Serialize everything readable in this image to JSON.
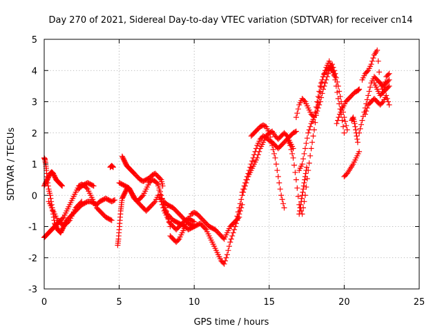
{
  "chart_data": {
    "type": "scatter",
    "title": "Day 270 of 2021, Sidereal Day-to-day VTEC variation (SDTVAR) for receiver cn14",
    "xlabel": "GPS time / hours",
    "ylabel": "SDTVAR / TECUs",
    "xlim": [
      0,
      25
    ],
    "ylim": [
      -3,
      5
    ],
    "xticks": [
      "0",
      "5",
      "10",
      "15",
      "20",
      "25"
    ],
    "yticks": [
      "-3",
      "-2",
      "-1",
      "0",
      "1",
      "2",
      "3",
      "4",
      "5"
    ],
    "grid": true,
    "marker": "plus",
    "color": "#ff0000",
    "series": [
      {
        "x": [
          0.0,
          0.05,
          0.1,
          0.15,
          0.2,
          0.3,
          0.4,
          0.5,
          0.6,
          0.7,
          0.8,
          0.9,
          1.0,
          1.1,
          1.2,
          1.3,
          1.4,
          1.5,
          1.7,
          1.9,
          2.1,
          2.3,
          2.5,
          2.7,
          2.9,
          3.1,
          3.3,
          3.5,
          3.7,
          3.9,
          4.1,
          4.3,
          4.5,
          4.7
        ],
        "y": [
          1.2,
          1.15,
          1.0,
          0.8,
          0.5,
          0.2,
          0.0,
          -0.3,
          -0.6,
          -0.9,
          -1.0,
          -1.1,
          -1.15,
          -1.2,
          -1.1,
          -1.0,
          -0.9,
          -0.8,
          -0.7,
          -0.6,
          -0.5,
          -0.4,
          -0.3,
          -0.25,
          -0.2,
          -0.2,
          -0.25,
          -0.3,
          -0.2,
          -0.15,
          -0.1,
          -0.15,
          -0.2,
          -0.15
        ]
      },
      {
        "x": [
          0.0,
          0.1,
          0.2,
          0.3,
          0.4,
          0.5,
          0.6,
          0.7,
          0.8,
          0.9,
          1.0,
          1.1,
          1.3,
          1.5,
          1.7,
          1.9,
          2.1,
          2.3,
          2.5,
          2.7,
          2.9,
          3.1,
          3.3,
          3.5,
          3.7,
          3.9,
          4.1,
          4.3,
          4.5
        ],
        "y": [
          -1.35,
          -1.3,
          -1.25,
          -1.2,
          -1.15,
          -1.1,
          -1.05,
          -1.0,
          -0.95,
          -0.9,
          -0.85,
          -0.8,
          -0.7,
          -0.5,
          -0.3,
          -0.1,
          0.1,
          0.3,
          0.35,
          0.3,
          0.2,
          0.0,
          -0.2,
          -0.4,
          -0.5,
          -0.6,
          -0.7,
          -0.75,
          -0.8
        ]
      },
      {
        "x": [
          0.0,
          0.1,
          0.2,
          0.3,
          0.4,
          0.5,
          0.6,
          0.7,
          0.8,
          0.9,
          1.0,
          1.1,
          1.2
        ],
        "y": [
          0.3,
          0.4,
          0.5,
          0.6,
          0.7,
          0.75,
          0.7,
          0.6,
          0.5,
          0.45,
          0.4,
          0.35,
          0.3
        ]
      },
      {
        "x": [
          0.3,
          0.5,
          0.7,
          0.9,
          1.1,
          1.3,
          1.5,
          1.7,
          1.9,
          2.1,
          2.3,
          2.5
        ],
        "y": [
          -0.2,
          -0.4,
          -0.6,
          -0.8,
          -0.9,
          -0.95,
          -0.9,
          -0.8,
          -0.6,
          -0.4,
          -0.3,
          -0.2
        ]
      },
      {
        "x": [
          2.3,
          2.5,
          2.7,
          2.9,
          3.1,
          3.3
        ],
        "y": [
          0.2,
          0.3,
          0.35,
          0.4,
          0.35,
          0.3
        ]
      },
      {
        "x": [
          4.4,
          4.5,
          4.6
        ],
        "y": [
          0.9,
          0.95,
          0.9
        ]
      },
      {
        "x": [
          4.9,
          4.95,
          5.0,
          5.05,
          5.1,
          5.15,
          5.2,
          5.3,
          5.4,
          5.5,
          5.6,
          5.7,
          5.8,
          5.9,
          6.0,
          6.2,
          6.4,
          6.6,
          6.8,
          7.0,
          7.2,
          7.4,
          7.6,
          7.8,
          8.0,
          8.2,
          8.4,
          8.6,
          8.8,
          9.0,
          9.2,
          9.4,
          9.6,
          9.8,
          10.0
        ],
        "y": [
          -1.6,
          -1.4,
          -1.1,
          -0.8,
          -0.5,
          -0.3,
          -0.1,
          0.0,
          0.1,
          0.2,
          0.25,
          0.2,
          0.1,
          0.0,
          -0.1,
          -0.2,
          -0.3,
          -0.4,
          -0.5,
          -0.4,
          -0.3,
          -0.2,
          0.0,
          -0.2,
          -0.5,
          -0.7,
          -0.9,
          -1.0,
          -1.1,
          -1.0,
          -0.9,
          -0.8,
          -0.75,
          -0.8,
          -0.85
        ]
      },
      {
        "x": [
          5.2,
          5.3,
          5.4,
          5.5,
          5.6,
          5.7,
          5.8,
          5.9,
          6.0,
          6.2,
          6.4,
          6.6,
          6.8,
          7.0,
          7.2,
          7.4,
          7.6,
          7.8,
          7.9
        ],
        "y": [
          1.25,
          1.15,
          1.05,
          0.95,
          0.9,
          0.85,
          0.8,
          0.75,
          0.7,
          0.6,
          0.5,
          0.45,
          0.5,
          0.55,
          0.65,
          0.7,
          0.6,
          0.5,
          0.3
        ]
      },
      {
        "x": [
          5.0,
          5.2,
          5.4,
          5.6,
          5.8,
          6.0,
          6.2,
          6.4,
          6.6,
          6.8,
          7.0,
          7.2,
          7.4,
          7.6,
          7.8,
          8.0,
          8.2,
          8.4
        ],
        "y": [
          0.4,
          0.35,
          0.3,
          0.25,
          0.1,
          -0.05,
          -0.2,
          -0.1,
          0.0,
          0.2,
          0.4,
          0.5,
          0.45,
          0.35,
          0.0,
          -0.3,
          -0.6,
          -1.0
        ]
      },
      {
        "x": [
          7.6,
          7.8,
          8.0,
          8.2,
          8.4,
          8.6,
          8.8,
          9.0,
          9.2,
          9.4,
          9.6,
          9.8,
          10.0,
          10.2,
          10.4,
          10.6,
          10.8,
          11.0,
          11.2,
          11.4,
          11.6,
          11.8,
          12.0,
          12.2,
          12.4,
          12.6,
          12.8,
          13.0,
          13.2
        ],
        "y": [
          0.3,
          -0.1,
          -0.4,
          -0.6,
          -0.7,
          -0.8,
          -0.85,
          -0.9,
          -0.95,
          -1.0,
          -1.1,
          -1.05,
          -1.0,
          -0.95,
          -0.9,
          -1.0,
          -1.1,
          -1.3,
          -1.5,
          -1.7,
          -1.9,
          -2.1,
          -2.2,
          -1.9,
          -1.5,
          -1.2,
          -0.9,
          -0.6,
          -0.3
        ]
      },
      {
        "x": [
          8.4,
          8.6,
          8.8,
          9.0,
          9.2,
          9.4,
          9.6,
          9.8,
          10.0,
          10.2,
          10.4,
          10.6,
          10.8,
          11.0,
          11.2,
          11.4,
          11.6,
          11.8,
          12.0,
          12.2,
          12.4,
          12.6,
          12.8,
          13.0
        ],
        "y": [
          -1.3,
          -1.4,
          -1.5,
          -1.4,
          -1.2,
          -1.0,
          -0.8,
          -0.6,
          -0.55,
          -0.6,
          -0.7,
          -0.8,
          -0.9,
          -1.0,
          -1.05,
          -1.1,
          -1.2,
          -1.3,
          -1.4,
          -1.2,
          -1.0,
          -0.9,
          -0.8,
          -0.7
        ]
      },
      {
        "x": [
          8.0,
          8.2,
          8.4,
          8.6,
          8.8,
          9.0,
          9.2,
          9.4,
          9.6,
          9.8,
          10.0
        ],
        "y": [
          -0.2,
          -0.3,
          -0.35,
          -0.4,
          -0.5,
          -0.6,
          -0.7,
          -0.8,
          -0.9,
          -0.95,
          -1.0
        ]
      },
      {
        "x": [
          12.8,
          13.0,
          13.2,
          13.4,
          13.6,
          13.8,
          14.0,
          14.2,
          14.4,
          14.6,
          14.8,
          15.0,
          15.2,
          15.4,
          15.6,
          15.8,
          16.0,
          16.2,
          16.4,
          16.6
        ],
        "y": [
          -0.8,
          -0.4,
          0.0,
          0.3,
          0.6,
          0.8,
          1.0,
          1.2,
          1.5,
          1.7,
          1.9,
          2.0,
          2.05,
          1.9,
          1.8,
          1.9,
          2.0,
          1.9,
          1.7,
          1.5
        ]
      },
      {
        "x": [
          13.2,
          13.4,
          13.6,
          13.8,
          14.0,
          14.2,
          14.4,
          14.6,
          14.8,
          15.0,
          15.2,
          15.4,
          15.6,
          15.8,
          16.0,
          16.2,
          16.4,
          16.6,
          16.8
        ],
        "y": [
          0.1,
          0.4,
          0.7,
          1.0,
          1.3,
          1.6,
          1.8,
          1.9,
          1.85,
          1.75,
          1.7,
          1.6,
          1.5,
          1.6,
          1.7,
          1.8,
          1.9,
          2.0,
          2.05
        ]
      },
      {
        "x": [
          13.8,
          14.0,
          14.2,
          14.4,
          14.6,
          14.8,
          15.0,
          15.2,
          15.4,
          15.6,
          15.8,
          16.0
        ],
        "y": [
          1.9,
          2.0,
          2.1,
          2.2,
          2.25,
          2.2,
          2.0,
          1.6,
          1.2,
          0.6,
          0.0,
          -0.4
        ]
      },
      {
        "x": [
          16.2,
          16.4,
          16.6,
          16.8,
          17.0,
          17.2,
          17.4,
          17.6,
          17.8,
          18.0,
          18.2,
          18.4,
          18.6,
          18.8,
          19.0,
          19.2,
          19.4,
          19.6,
          19.8,
          20.0
        ],
        "y": [
          1.8,
          1.6,
          1.2,
          0.5,
          -0.3,
          -0.6,
          0.0,
          0.8,
          1.5,
          2.1,
          2.8,
          3.3,
          3.8,
          4.1,
          4.3,
          4.1,
          3.7,
          3.1,
          2.6,
          2.0
        ]
      },
      {
        "x": [
          16.8,
          17.0,
          17.2,
          17.4,
          17.6,
          17.8,
          18.0,
          18.2,
          18.4,
          18.6,
          18.8,
          19.0,
          19.2,
          19.4,
          19.6,
          19.8,
          20.0,
          20.2
        ],
        "y": [
          2.5,
          2.9,
          3.1,
          3.0,
          2.8,
          2.6,
          2.5,
          2.7,
          3.0,
          3.4,
          3.7,
          4.0,
          4.2,
          3.9,
          3.5,
          3.0,
          2.5,
          2.1
        ]
      },
      {
        "x": [
          17.0,
          17.2,
          17.4,
          17.6,
          17.8,
          18.0,
          18.2,
          18.4,
          18.6,
          18.8,
          19.0,
          19.2,
          19.4
        ],
        "y": [
          0.8,
          1.0,
          1.5,
          2.0,
          2.3,
          2.5,
          3.0,
          3.5,
          3.8,
          4.0,
          4.1,
          4.0,
          3.8
        ]
      },
      {
        "x": [
          17.0,
          17.1,
          17.2,
          17.3,
          17.4,
          17.5
        ],
        "y": [
          -0.6,
          -0.3,
          0.0,
          0.3,
          0.6,
          0.9
        ]
      },
      {
        "x": [
          19.5,
          19.7,
          19.9,
          20.1,
          20.3,
          20.5,
          20.7,
          20.9,
          21.0
        ],
        "y": [
          2.3,
          2.6,
          2.8,
          3.0,
          3.1,
          3.2,
          3.3,
          3.35,
          3.4
        ]
      },
      {
        "x": [
          20.0,
          20.2,
          20.4,
          20.6,
          20.8,
          21.0
        ],
        "y": [
          0.6,
          0.7,
          0.85,
          1.0,
          1.2,
          1.4
        ]
      },
      {
        "x": [
          20.5,
          20.6,
          20.7,
          20.8,
          20.9
        ],
        "y": [
          2.4,
          2.5,
          2.3,
          2.0,
          1.7
        ]
      },
      {
        "x": [
          21.0,
          21.2,
          21.4,
          21.6,
          21.8,
          22.0,
          22.2,
          22.4,
          22.6,
          22.8,
          23.0
        ],
        "y": [
          2.0,
          2.4,
          2.8,
          3.2,
          3.6,
          3.8,
          3.7,
          3.6,
          3.5,
          3.6,
          3.7
        ]
      },
      {
        "x": [
          21.2,
          21.4,
          21.6,
          21.8,
          22.0,
          22.2,
          22.4,
          22.6,
          22.8,
          23.0
        ],
        "y": [
          3.7,
          3.9,
          4.0,
          4.2,
          4.5,
          4.65,
          3.6,
          3.3,
          3.4,
          3.5
        ]
      },
      {
        "x": [
          21.4,
          21.6,
          21.8,
          22.0,
          22.2,
          22.4,
          22.6,
          22.8,
          23.0
        ],
        "y": [
          2.6,
          2.9,
          3.0,
          3.1,
          3.0,
          2.9,
          3.0,
          3.2,
          2.9
        ]
      },
      {
        "x": [
          22.0,
          22.2,
          22.4,
          22.6,
          22.8,
          23.0
        ],
        "y": [
          3.6,
          3.4,
          3.2,
          3.3,
          3.8,
          3.9
        ]
      }
    ]
  }
}
